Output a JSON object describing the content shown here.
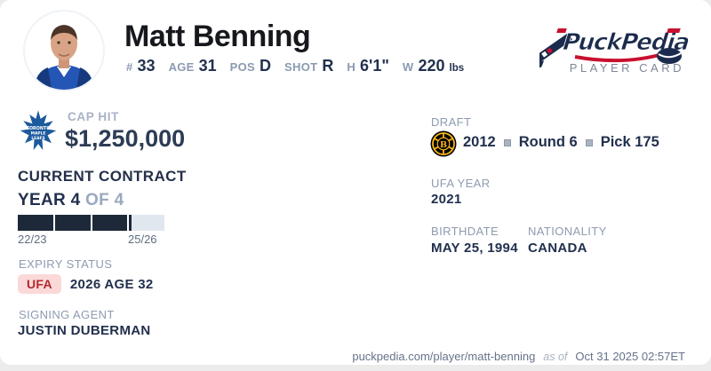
{
  "player": {
    "name": "Matt Benning"
  },
  "header_stats": [
    {
      "label": "#",
      "value": "33"
    },
    {
      "label": "AGE",
      "value": "31"
    },
    {
      "label": "POS",
      "value": "D"
    },
    {
      "label": "SHOT",
      "value": "R"
    },
    {
      "label": "H",
      "value": "6'1\""
    },
    {
      "label": "W",
      "value": "220",
      "unit": "lbs"
    }
  ],
  "brand": {
    "name": "PuckPedia",
    "tagline": "PLAYER CARD"
  },
  "cap_hit": {
    "label": "CAP HIT",
    "value": "$1,250,000",
    "team": "Toronto Maple Leafs"
  },
  "contract": {
    "title": "CURRENT CONTRACT",
    "year_label": "YEAR 4",
    "of_label": " OF 4",
    "years_total": 4,
    "current_year": 4,
    "segments": [
      1,
      1,
      1,
      0.08
    ],
    "start_season": "22/23",
    "last_season": "25/26"
  },
  "expiry": {
    "label": "EXPIRY STATUS",
    "badge": "UFA",
    "detail": "2026 AGE 32"
  },
  "agent": {
    "label": "SIGNING AGENT",
    "name": "JUSTIN DUBERMAN"
  },
  "draft": {
    "label": "DRAFT",
    "team": "Boston Bruins",
    "year": "2012",
    "round": "Round 6",
    "pick": "Pick 175"
  },
  "ufa_year": {
    "label": "UFA YEAR",
    "value": "2021"
  },
  "birthdate": {
    "label": "BIRTHDATE",
    "value": "MAY 25, 1994"
  },
  "nationality": {
    "label": "NATIONALITY",
    "value": "CANADA"
  },
  "footer": {
    "url": "puckpedia.com/player/matt-benning",
    "as_of": "as of",
    "timestamp": "Oct 31 2025 02:57ET"
  },
  "colors": {
    "navy_text": "#22304e",
    "label_gray": "#8e9bb0",
    "bar_filled": "#1d2939",
    "bar_empty": "#e1e7ee",
    "ufa_badge_bg": "#fbd9d9",
    "ufa_badge_text": "#b3282d",
    "brand_navy": "#1b2b4d",
    "brand_red": "#c8102e",
    "leafs_blue": "#1c5a9e",
    "bruins_gold": "#f7b418"
  }
}
